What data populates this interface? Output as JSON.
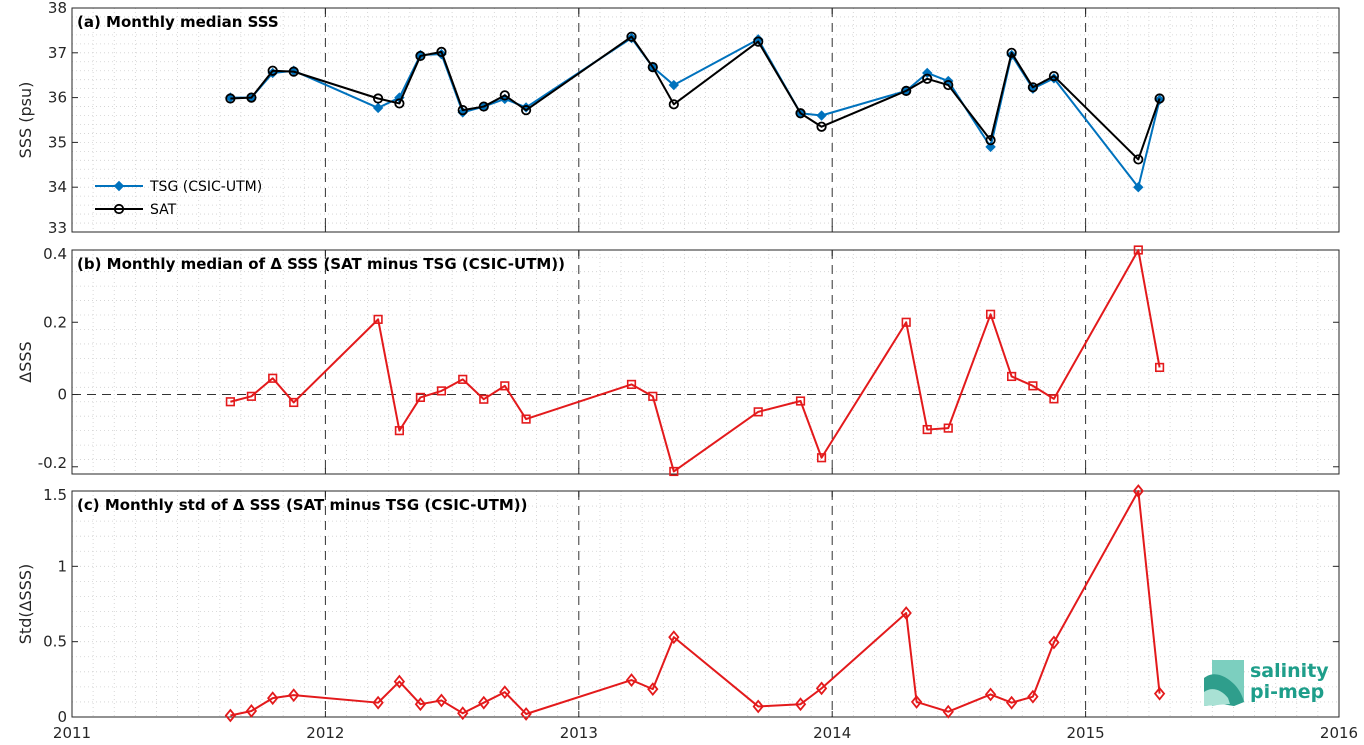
{
  "colors": {
    "tsg": "#0072BD",
    "sat": "#000000",
    "delta": "#E31A1C",
    "logo": "#1e9e8a"
  },
  "logo": {
    "line1": "salinity",
    "line2": "pi-mep"
  },
  "chart_data": [
    {
      "type": "line",
      "title": "(a) Monthly median SSS",
      "ylabel": "SSS (psu)",
      "xlim": [
        2011,
        2016
      ],
      "ylim": [
        33,
        38
      ],
      "xticks": [
        2011,
        2012,
        2013,
        2014,
        2015,
        2016
      ],
      "yticks": [
        33,
        34,
        35,
        36,
        37,
        38
      ],
      "grid": true,
      "legend": "bottom-left",
      "series": [
        {
          "name": "TSG (CSIC-UTM)",
          "marker": "diamond-filled",
          "color": "#0072BD",
          "x": [
            2011.625,
            2011.708,
            2011.792,
            2011.875,
            2012.208,
            2012.292,
            2012.375,
            2012.458,
            2012.542,
            2012.625,
            2012.708,
            2012.792,
            2013.208,
            2013.292,
            2013.375,
            2013.708,
            2013.875,
            2013.958,
            2014.292,
            2014.375,
            2014.458,
            2014.625,
            2014.708,
            2014.792,
            2014.875,
            2015.208,
            2015.292
          ],
          "y": [
            36.0,
            36.0,
            36.55,
            36.6,
            35.77,
            36.0,
            36.95,
            36.97,
            35.67,
            35.8,
            35.97,
            35.78,
            37.33,
            36.68,
            36.28,
            37.3,
            35.65,
            35.6,
            36.15,
            36.55,
            36.37,
            34.9,
            36.95,
            36.2,
            36.43,
            34.0,
            35.95
          ]
        },
        {
          "name": "SAT",
          "marker": "circle-open",
          "color": "#000000",
          "x": [
            2011.625,
            2011.708,
            2011.792,
            2011.875,
            2012.208,
            2012.292,
            2012.375,
            2012.458,
            2012.542,
            2012.625,
            2012.708,
            2012.792,
            2013.208,
            2013.292,
            2013.375,
            2013.708,
            2013.875,
            2013.958,
            2014.292,
            2014.375,
            2014.458,
            2014.625,
            2014.708,
            2014.792,
            2014.875,
            2015.208,
            2015.292
          ],
          "y": [
            35.98,
            36.0,
            36.6,
            36.58,
            35.98,
            35.87,
            36.93,
            37.02,
            35.72,
            35.8,
            36.05,
            35.72,
            37.36,
            36.68,
            35.85,
            37.25,
            35.65,
            35.35,
            36.15,
            36.42,
            36.28,
            35.05,
            37.0,
            36.23,
            36.48,
            34.62,
            35.98
          ]
        }
      ]
    },
    {
      "type": "line",
      "title": "(b) Monthly median of Δ SSS (SAT minus TSG (CSIC-UTM))",
      "ylabel": "ΔSSS",
      "xlim": [
        2011,
        2016
      ],
      "ylim": [
        -0.22,
        0.4
      ],
      "yticks": [
        -0.2,
        0,
        0.2,
        0.4
      ],
      "ytick_labels": [
        "-0.2",
        "0",
        "0.2",
        "0.4"
      ],
      "zero_line": true,
      "grid": true,
      "series": [
        {
          "marker": "square-open",
          "color": "#E31A1C",
          "x": [
            2011.625,
            2011.708,
            2011.792,
            2011.875,
            2012.208,
            2012.292,
            2012.375,
            2012.458,
            2012.542,
            2012.625,
            2012.708,
            2012.792,
            2013.208,
            2013.292,
            2013.375,
            2013.708,
            2013.875,
            2013.958,
            2014.292,
            2014.375,
            2014.458,
            2014.625,
            2014.708,
            2014.792,
            2014.875,
            2015.208,
            2015.292
          ],
          "y": [
            -0.02,
            -0.005,
            0.045,
            -0.022,
            0.208,
            -0.1,
            -0.008,
            0.01,
            0.042,
            -0.013,
            0.024,
            -0.068,
            0.028,
            -0.005,
            -0.213,
            -0.048,
            -0.018,
            -0.175,
            0.2,
            -0.097,
            -0.093,
            0.222,
            0.05,
            0.024,
            -0.012,
            0.4,
            0.075
          ]
        }
      ]
    },
    {
      "type": "line",
      "title": "(c) Monthly std of Δ SSS (SAT minus TSG (CSIC-UTM))",
      "ylabel": "Std(ΔSSS)",
      "xlabel": "",
      "xlim": [
        2011,
        2016
      ],
      "ylim": [
        0,
        1.5
      ],
      "xticks": [
        2011,
        2012,
        2013,
        2014,
        2015,
        2016
      ],
      "yticks": [
        0,
        0.5,
        1,
        1.5
      ],
      "ytick_labels": [
        "0",
        "0.5",
        "1",
        "1.5"
      ],
      "grid": true,
      "series": [
        {
          "marker": "diamond-open",
          "color": "#E31A1C",
          "x": [
            2011.625,
            2011.708,
            2011.792,
            2011.875,
            2012.208,
            2012.292,
            2012.375,
            2012.458,
            2012.542,
            2012.625,
            2012.708,
            2012.792,
            2013.208,
            2013.292,
            2013.375,
            2013.708,
            2013.875,
            2013.958,
            2014.292,
            2014.333,
            2014.458,
            2014.625,
            2014.708,
            2014.792,
            2014.875,
            2015.208,
            2015.292
          ],
          "y": [
            0.01,
            0.04,
            0.125,
            0.145,
            0.095,
            0.235,
            0.085,
            0.11,
            0.025,
            0.095,
            0.165,
            0.02,
            0.245,
            0.185,
            0.53,
            0.07,
            0.085,
            0.19,
            0.69,
            0.1,
            0.035,
            0.15,
            0.095,
            0.135,
            0.495,
            1.5,
            0.155
          ]
        }
      ]
    }
  ]
}
